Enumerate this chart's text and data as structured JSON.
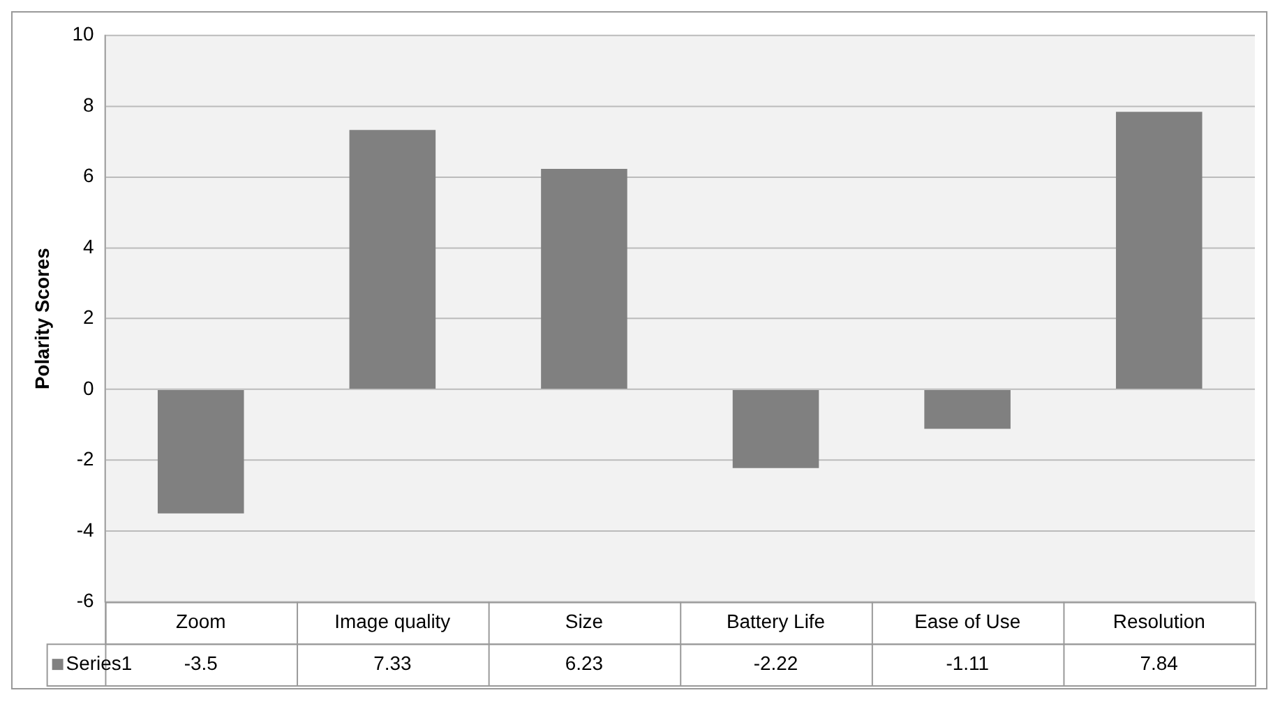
{
  "chart_data": {
    "type": "bar",
    "ylabel": "Polarity Scores",
    "categories": [
      "Zoom",
      "Image quality",
      "Size",
      "Battery Life",
      "Ease of Use",
      "Resolution"
    ],
    "series": [
      {
        "name": "Series1",
        "color": "#808080",
        "values": [
          -3.5,
          7.33,
          6.23,
          -2.22,
          -1.11,
          7.84
        ]
      }
    ],
    "ylim": [
      -6,
      10
    ],
    "yticks": [
      -6,
      -4,
      -2,
      0,
      2,
      4,
      6,
      8,
      10
    ],
    "grid": "y",
    "legend": "bottom left",
    "data_labels": true
  }
}
